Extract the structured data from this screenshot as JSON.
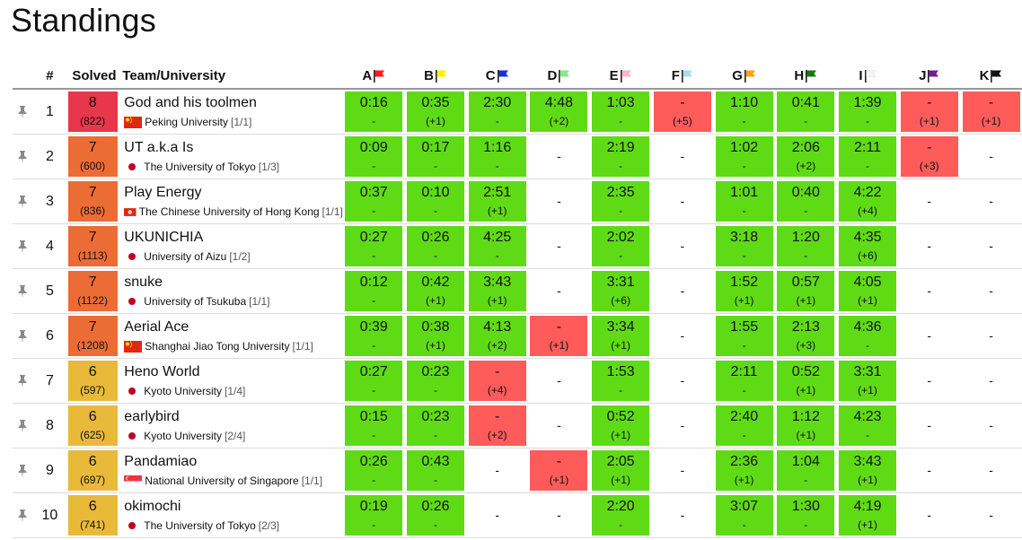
{
  "page": {
    "title": "Standings"
  },
  "headers": {
    "rank": "#",
    "solved": "Solved",
    "team": "Team/University"
  },
  "colors": {
    "accepted": "#5fdb16",
    "rejected": "#ff5b5b",
    "solved8": "#e8364a",
    "solved7": "#ec6c36",
    "solved6": "#e9b93a"
  },
  "problems": [
    {
      "label": "A",
      "flag_color": "#ff1a1a",
      "flag_icon": "flag-red-icon"
    },
    {
      "label": "B",
      "flag_color": "#ffee00",
      "flag_icon": "flag-yellow-icon"
    },
    {
      "label": "C",
      "flag_color": "#1530e0",
      "flag_icon": "flag-blue-icon"
    },
    {
      "label": "D",
      "flag_color": "#8ae68a",
      "flag_icon": "flag-light-green-icon"
    },
    {
      "label": "E",
      "flag_color": "#ffb6c1",
      "flag_icon": "flag-pink-icon"
    },
    {
      "label": "F",
      "flag_color": "#a9dcf0",
      "flag_icon": "flag-light-blue-icon"
    },
    {
      "label": "G",
      "flag_color": "#ff9f0f",
      "flag_icon": "flag-orange-icon"
    },
    {
      "label": "H",
      "flag_color": "#137a13",
      "flag_icon": "flag-dark-green-icon"
    },
    {
      "label": "I",
      "flag_color": "#f4f4f4",
      "flag_icon": "flag-white-icon"
    },
    {
      "label": "J",
      "flag_color": "#7a1a8a",
      "flag_icon": "flag-purple-icon"
    },
    {
      "label": "K",
      "flag_color": "#111111",
      "flag_icon": "flag-black-icon"
    }
  ],
  "rows": [
    {
      "rank": "1",
      "solved": "8",
      "penalty": "(822)",
      "solved_color": "#e8364a",
      "team": "God and his toolmen",
      "university": "Peking University",
      "uni_frac": "[1/1]",
      "flag": "cn",
      "cells": [
        {
          "s": "ac",
          "t": "0:16",
          "a": "-"
        },
        {
          "s": "ac",
          "t": "0:35",
          "a": "(+1)"
        },
        {
          "s": "ac",
          "t": "2:30",
          "a": "-"
        },
        {
          "s": "ac",
          "t": "4:48",
          "a": "(+2)"
        },
        {
          "s": "ac",
          "t": "1:03",
          "a": "-"
        },
        {
          "s": "wa",
          "t": "-",
          "a": "(+5)"
        },
        {
          "s": "ac",
          "t": "1:10",
          "a": "-"
        },
        {
          "s": "ac",
          "t": "0:41",
          "a": "-"
        },
        {
          "s": "ac",
          "t": "1:39",
          "a": "-"
        },
        {
          "s": "wa",
          "t": "-",
          "a": "(+1)"
        },
        {
          "s": "wa",
          "t": "-",
          "a": "(+1)"
        }
      ]
    },
    {
      "rank": "2",
      "solved": "7",
      "penalty": "(600)",
      "solved_color": "#ec6c36",
      "team": "UT a.k.a Is",
      "university": "The University of Tokyo",
      "uni_frac": "[1/3]",
      "flag": "jp",
      "cells": [
        {
          "s": "ac",
          "t": "0:09",
          "a": "-"
        },
        {
          "s": "ac",
          "t": "0:17",
          "a": "-"
        },
        {
          "s": "ac",
          "t": "1:16",
          "a": "-"
        },
        {
          "s": "none",
          "t": "-"
        },
        {
          "s": "ac",
          "t": "2:19",
          "a": "-"
        },
        {
          "s": "none",
          "t": "-"
        },
        {
          "s": "ac",
          "t": "1:02",
          "a": "-"
        },
        {
          "s": "ac",
          "t": "2:06",
          "a": "(+2)"
        },
        {
          "s": "ac",
          "t": "2:11",
          "a": "-"
        },
        {
          "s": "wa",
          "t": "-",
          "a": "(+3)"
        },
        {
          "s": "none",
          "t": "-"
        }
      ]
    },
    {
      "rank": "3",
      "solved": "7",
      "penalty": "(836)",
      "solved_color": "#ec6c36",
      "team": "Play Energy",
      "university": "The Chinese University of Hong Kong",
      "uni_frac": "[1/1]",
      "flag": "hk",
      "cells": [
        {
          "s": "ac",
          "t": "0:37",
          "a": "-"
        },
        {
          "s": "ac",
          "t": "0:10",
          "a": "-"
        },
        {
          "s": "ac",
          "t": "2:51",
          "a": "(+1)"
        },
        {
          "s": "none",
          "t": "-"
        },
        {
          "s": "ac",
          "t": "2:35",
          "a": "-"
        },
        {
          "s": "none",
          "t": "-"
        },
        {
          "s": "ac",
          "t": "1:01",
          "a": "-"
        },
        {
          "s": "ac",
          "t": "0:40",
          "a": "-"
        },
        {
          "s": "ac",
          "t": "4:22",
          "a": "(+4)"
        },
        {
          "s": "none",
          "t": "-"
        },
        {
          "s": "none",
          "t": "-"
        }
      ]
    },
    {
      "rank": "4",
      "solved": "7",
      "penalty": "(1113)",
      "solved_color": "#ec6c36",
      "team": "UKUNICHIA",
      "university": "University of Aizu",
      "uni_frac": "[1/2]",
      "flag": "jp",
      "cells": [
        {
          "s": "ac",
          "t": "0:27",
          "a": "-"
        },
        {
          "s": "ac",
          "t": "0:26",
          "a": "-"
        },
        {
          "s": "ac",
          "t": "4:25",
          "a": "-"
        },
        {
          "s": "none",
          "t": "-"
        },
        {
          "s": "ac",
          "t": "2:02",
          "a": "-"
        },
        {
          "s": "none",
          "t": "-"
        },
        {
          "s": "ac",
          "t": "3:18",
          "a": "-"
        },
        {
          "s": "ac",
          "t": "1:20",
          "a": "-"
        },
        {
          "s": "ac",
          "t": "4:35",
          "a": "(+6)"
        },
        {
          "s": "none",
          "t": "-"
        },
        {
          "s": "none",
          "t": "-"
        }
      ]
    },
    {
      "rank": "5",
      "solved": "7",
      "penalty": "(1122)",
      "solved_color": "#ec6c36",
      "team": "snuke",
      "university": "University of Tsukuba",
      "uni_frac": "[1/1]",
      "flag": "jp",
      "cells": [
        {
          "s": "ac",
          "t": "0:12",
          "a": "-"
        },
        {
          "s": "ac",
          "t": "0:42",
          "a": "(+1)"
        },
        {
          "s": "ac",
          "t": "3:43",
          "a": "(+1)"
        },
        {
          "s": "none",
          "t": "-"
        },
        {
          "s": "ac",
          "t": "3:31",
          "a": "(+6)"
        },
        {
          "s": "none",
          "t": "-"
        },
        {
          "s": "ac",
          "t": "1:52",
          "a": "(+1)"
        },
        {
          "s": "ac",
          "t": "0:57",
          "a": "(+1)"
        },
        {
          "s": "ac",
          "t": "4:05",
          "a": "(+1)"
        },
        {
          "s": "none",
          "t": "-"
        },
        {
          "s": "none",
          "t": "-"
        }
      ]
    },
    {
      "rank": "6",
      "solved": "7",
      "penalty": "(1208)",
      "solved_color": "#ec6c36",
      "team": "Aerial Ace",
      "university": "Shanghai Jiao Tong University",
      "uni_frac": "[1/1]",
      "flag": "cn",
      "cells": [
        {
          "s": "ac",
          "t": "0:39",
          "a": "-"
        },
        {
          "s": "ac",
          "t": "0:38",
          "a": "(+1)"
        },
        {
          "s": "ac",
          "t": "4:13",
          "a": "(+2)"
        },
        {
          "s": "wa",
          "t": "-",
          "a": "(+1)"
        },
        {
          "s": "ac",
          "t": "3:34",
          "a": "(+1)"
        },
        {
          "s": "none",
          "t": "-"
        },
        {
          "s": "ac",
          "t": "1:55",
          "a": "-"
        },
        {
          "s": "ac",
          "t": "2:13",
          "a": "(+3)"
        },
        {
          "s": "ac",
          "t": "4:36",
          "a": "-"
        },
        {
          "s": "none",
          "t": "-"
        },
        {
          "s": "none",
          "t": "-"
        }
      ]
    },
    {
      "rank": "7",
      "solved": "6",
      "penalty": "(597)",
      "solved_color": "#e9b93a",
      "team": "Heno World",
      "university": "Kyoto University",
      "uni_frac": "[1/4]",
      "flag": "jp",
      "cells": [
        {
          "s": "ac",
          "t": "0:27",
          "a": "-"
        },
        {
          "s": "ac",
          "t": "0:23",
          "a": "-"
        },
        {
          "s": "wa",
          "t": "-",
          "a": "(+4)"
        },
        {
          "s": "none",
          "t": "-"
        },
        {
          "s": "ac",
          "t": "1:53",
          "a": "-"
        },
        {
          "s": "none",
          "t": "-"
        },
        {
          "s": "ac",
          "t": "2:11",
          "a": "-"
        },
        {
          "s": "ac",
          "t": "0:52",
          "a": "(+1)"
        },
        {
          "s": "ac",
          "t": "3:31",
          "a": "(+1)"
        },
        {
          "s": "none",
          "t": "-"
        },
        {
          "s": "none",
          "t": "-"
        }
      ]
    },
    {
      "rank": "8",
      "solved": "6",
      "penalty": "(625)",
      "solved_color": "#e9b93a",
      "team": "earlybird",
      "university": "Kyoto University",
      "uni_frac": "[2/4]",
      "flag": "jp",
      "cells": [
        {
          "s": "ac",
          "t": "0:15",
          "a": "-"
        },
        {
          "s": "ac",
          "t": "0:23",
          "a": "-"
        },
        {
          "s": "wa",
          "t": "-",
          "a": "(+2)"
        },
        {
          "s": "none",
          "t": "-"
        },
        {
          "s": "ac",
          "t": "0:52",
          "a": "(+1)"
        },
        {
          "s": "none",
          "t": "-"
        },
        {
          "s": "ac",
          "t": "2:40",
          "a": "-"
        },
        {
          "s": "ac",
          "t": "1:12",
          "a": "(+1)"
        },
        {
          "s": "ac",
          "t": "4:23",
          "a": "-"
        },
        {
          "s": "none",
          "t": "-"
        },
        {
          "s": "none",
          "t": "-"
        }
      ]
    },
    {
      "rank": "9",
      "solved": "6",
      "penalty": "(697)",
      "solved_color": "#e9b93a",
      "team": "Pandamiao",
      "university": "National University of Singapore",
      "uni_frac": "[1/1]",
      "flag": "sg",
      "cells": [
        {
          "s": "ac",
          "t": "0:26",
          "a": "-"
        },
        {
          "s": "ac",
          "t": "0:43",
          "a": "-"
        },
        {
          "s": "none",
          "t": "-"
        },
        {
          "s": "wa",
          "t": "-",
          "a": "(+1)"
        },
        {
          "s": "ac",
          "t": "2:05",
          "a": "(+1)"
        },
        {
          "s": "none",
          "t": "-"
        },
        {
          "s": "ac",
          "t": "2:36",
          "a": "(+1)"
        },
        {
          "s": "ac",
          "t": "1:04",
          "a": "-"
        },
        {
          "s": "ac",
          "t": "3:43",
          "a": "(+1)"
        },
        {
          "s": "none",
          "t": "-"
        },
        {
          "s": "none",
          "t": "-"
        }
      ]
    },
    {
      "rank": "10",
      "solved": "6",
      "penalty": "(741)",
      "solved_color": "#e9b93a",
      "team": "okimochi",
      "university": "The University of Tokyo",
      "uni_frac": "[2/3]",
      "flag": "jp",
      "cells": [
        {
          "s": "ac",
          "t": "0:19",
          "a": "-"
        },
        {
          "s": "ac",
          "t": "0:26",
          "a": "-"
        },
        {
          "s": "none",
          "t": "-"
        },
        {
          "s": "none",
          "t": "-"
        },
        {
          "s": "ac",
          "t": "2:20",
          "a": "-"
        },
        {
          "s": "none",
          "t": "-"
        },
        {
          "s": "ac",
          "t": "3:07",
          "a": "-"
        },
        {
          "s": "ac",
          "t": "1:30",
          "a": "-"
        },
        {
          "s": "ac",
          "t": "4:19",
          "a": "(+1)"
        },
        {
          "s": "none",
          "t": "-"
        },
        {
          "s": "none",
          "t": "-"
        }
      ]
    }
  ]
}
